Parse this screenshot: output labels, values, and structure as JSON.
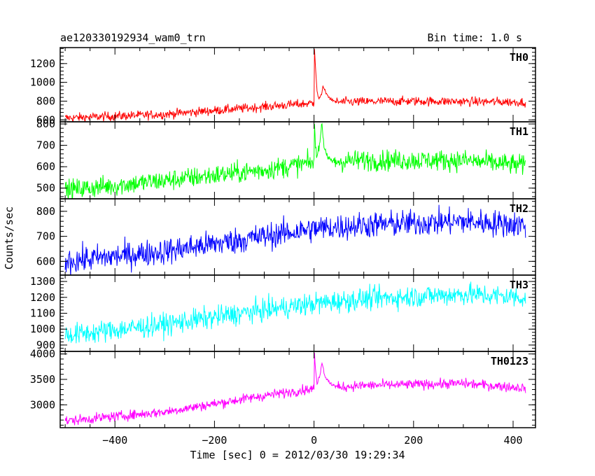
{
  "header": {
    "title": "ae120330192934_wam0_trn",
    "bin_time": "Bin time: 1.0 s"
  },
  "chart_data": {
    "type": "line",
    "title": "ae120330192934_wam0_trn",
    "subtitle": "Bin time: 1.0 s",
    "xlabel": "Time [sec] 0 = 2012/03/30 19:29:34",
    "ylabel": "Counts/sec",
    "xlim": [
      -510,
      445
    ],
    "xticks": [
      -400,
      -200,
      0,
      200,
      400
    ],
    "xtick_labels": [
      "−400",
      "−200",
      "0",
      "200",
      "400"
    ],
    "x_range_data": [
      -500,
      425
    ],
    "burst_time": 0,
    "panels": [
      {
        "name": "TH0",
        "color": "#ff0000",
        "ylim": [
          580,
          1370
        ],
        "yticks": [
          600,
          800,
          1000,
          1200
        ],
        "ytick_labels": [
          "600",
          "800",
          "1000",
          "1200"
        ],
        "baseline": [
          [
            -500,
            620
          ],
          [
            -300,
            660
          ],
          [
            -100,
            740
          ],
          [
            0,
            780
          ],
          [
            30,
            790
          ],
          [
            200,
            800
          ],
          [
            425,
            790
          ]
        ],
        "noise": 35,
        "burst": [
          [
            0,
            780
          ],
          [
            1,
            1360
          ],
          [
            3,
            1150
          ],
          [
            6,
            900
          ],
          [
            10,
            820
          ],
          [
            14,
            860
          ],
          [
            18,
            960
          ],
          [
            24,
            880
          ],
          [
            34,
            820
          ],
          [
            45,
            790
          ]
        ]
      },
      {
        "name": "TH1",
        "color": "#00ff00",
        "ylim": [
          450,
          810
        ],
        "yticks": [
          500,
          600,
          700,
          800
        ],
        "ytick_labels": [
          "500",
          "600",
          "700",
          "800"
        ],
        "baseline": [
          [
            -500,
            490
          ],
          [
            -300,
            535
          ],
          [
            -100,
            585
          ],
          [
            0,
            620
          ],
          [
            100,
            630
          ],
          [
            300,
            630
          ],
          [
            425,
            605
          ]
        ],
        "noise": 35,
        "burst": [
          [
            0,
            620
          ],
          [
            1,
            800
          ],
          [
            3,
            700
          ],
          [
            6,
            640
          ],
          [
            12,
            720
          ],
          [
            15,
            800
          ],
          [
            20,
            700
          ],
          [
            28,
            640
          ],
          [
            40,
            625
          ]
        ]
      },
      {
        "name": "TH2",
        "color": "#0000ff",
        "ylim": [
          545,
          850
        ],
        "yticks": [
          600,
          700,
          800
        ],
        "ytick_labels": [
          "600",
          "700",
          "800"
        ],
        "baseline": [
          [
            -500,
            600
          ],
          [
            -300,
            640
          ],
          [
            -100,
            700
          ],
          [
            0,
            730
          ],
          [
            100,
            745
          ],
          [
            300,
            760
          ],
          [
            425,
            745
          ]
        ],
        "noise": 38,
        "burst": []
      },
      {
        "name": "TH3",
        "color": "#00ffff",
        "ylim": [
          860,
          1340
        ],
        "yticks": [
          900,
          1000,
          1100,
          1200,
          1300
        ],
        "ytick_labels": [
          "900",
          "1000",
          "1100",
          "1200",
          "1300"
        ],
        "baseline": [
          [
            -500,
            960
          ],
          [
            -300,
            1030
          ],
          [
            -100,
            1120
          ],
          [
            0,
            1160
          ],
          [
            100,
            1190
          ],
          [
            300,
            1220
          ],
          [
            425,
            1200
          ]
        ],
        "noise": 50,
        "burst": []
      },
      {
        "name": "TH0123",
        "color": "#ff00ff",
        "ylim": [
          2550,
          4050
        ],
        "yticks": [
          3000,
          3500,
          4000
        ],
        "ytick_labels": [
          "3000",
          "3500",
          "4000"
        ],
        "baseline": [
          [
            -500,
            2680
          ],
          [
            -300,
            2860
          ],
          [
            -100,
            3180
          ],
          [
            0,
            3320
          ],
          [
            100,
            3380
          ],
          [
            300,
            3420
          ],
          [
            425,
            3330
          ]
        ],
        "noise": 70,
        "burst": [
          [
            0,
            3320
          ],
          [
            1,
            4000
          ],
          [
            3,
            3700
          ],
          [
            6,
            3420
          ],
          [
            12,
            3600
          ],
          [
            16,
            3820
          ],
          [
            22,
            3560
          ],
          [
            32,
            3420
          ],
          [
            45,
            3360
          ]
        ]
      }
    ]
  }
}
